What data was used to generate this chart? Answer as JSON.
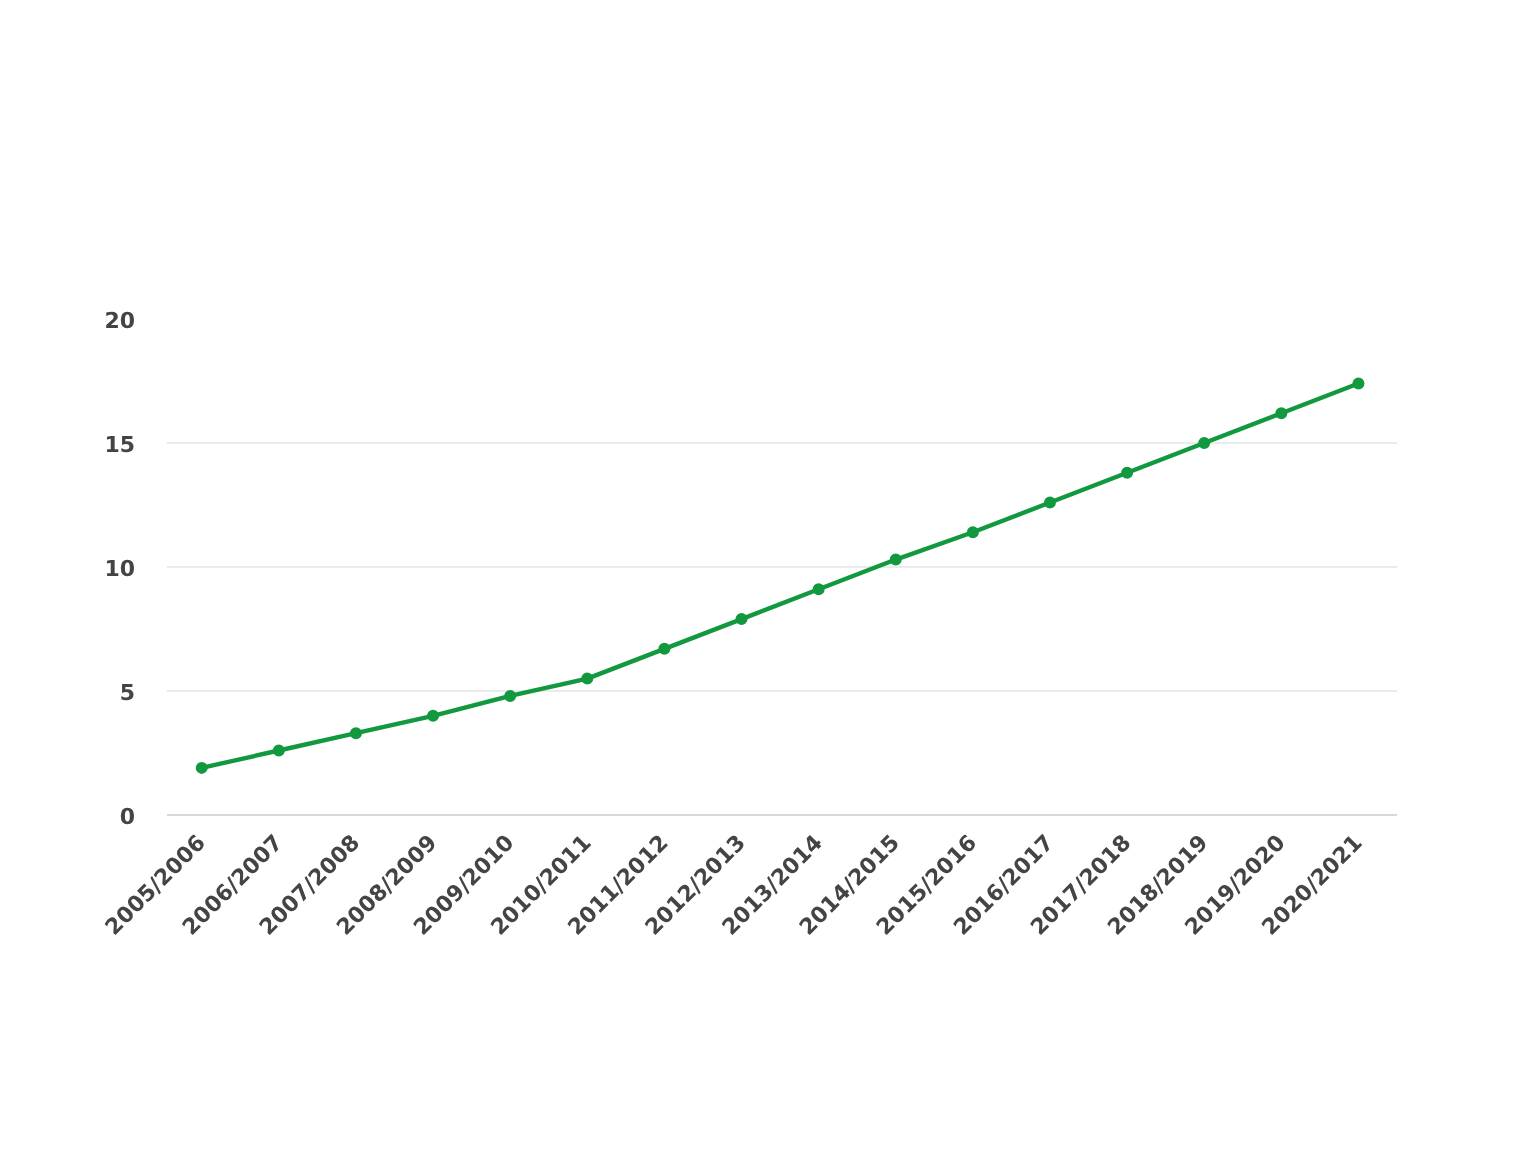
{
  "chart_data": {
    "type": "line",
    "categories": [
      "2005/2006",
      "2006/2007",
      "2007/2008",
      "2008/2009",
      "2009/2010",
      "2010/2011",
      "2011/2012",
      "2012/2013",
      "2013/2014",
      "2014/2015",
      "2015/2016",
      "2016/2017",
      "2017/2018",
      "2018/2019",
      "2019/2020",
      "2020/2021"
    ],
    "values": [
      1.9,
      2.6,
      3.3,
      4.0,
      4.8,
      5.5,
      6.7,
      7.9,
      9.1,
      10.3,
      11.4,
      12.6,
      13.8,
      15.0,
      16.2,
      17.4
    ],
    "color": "#12993f",
    "ylim": [
      0,
      20
    ],
    "yticks": [
      0,
      5,
      10,
      15,
      20
    ],
    "grid": "y",
    "marker": "circle",
    "line_style": "solid"
  }
}
